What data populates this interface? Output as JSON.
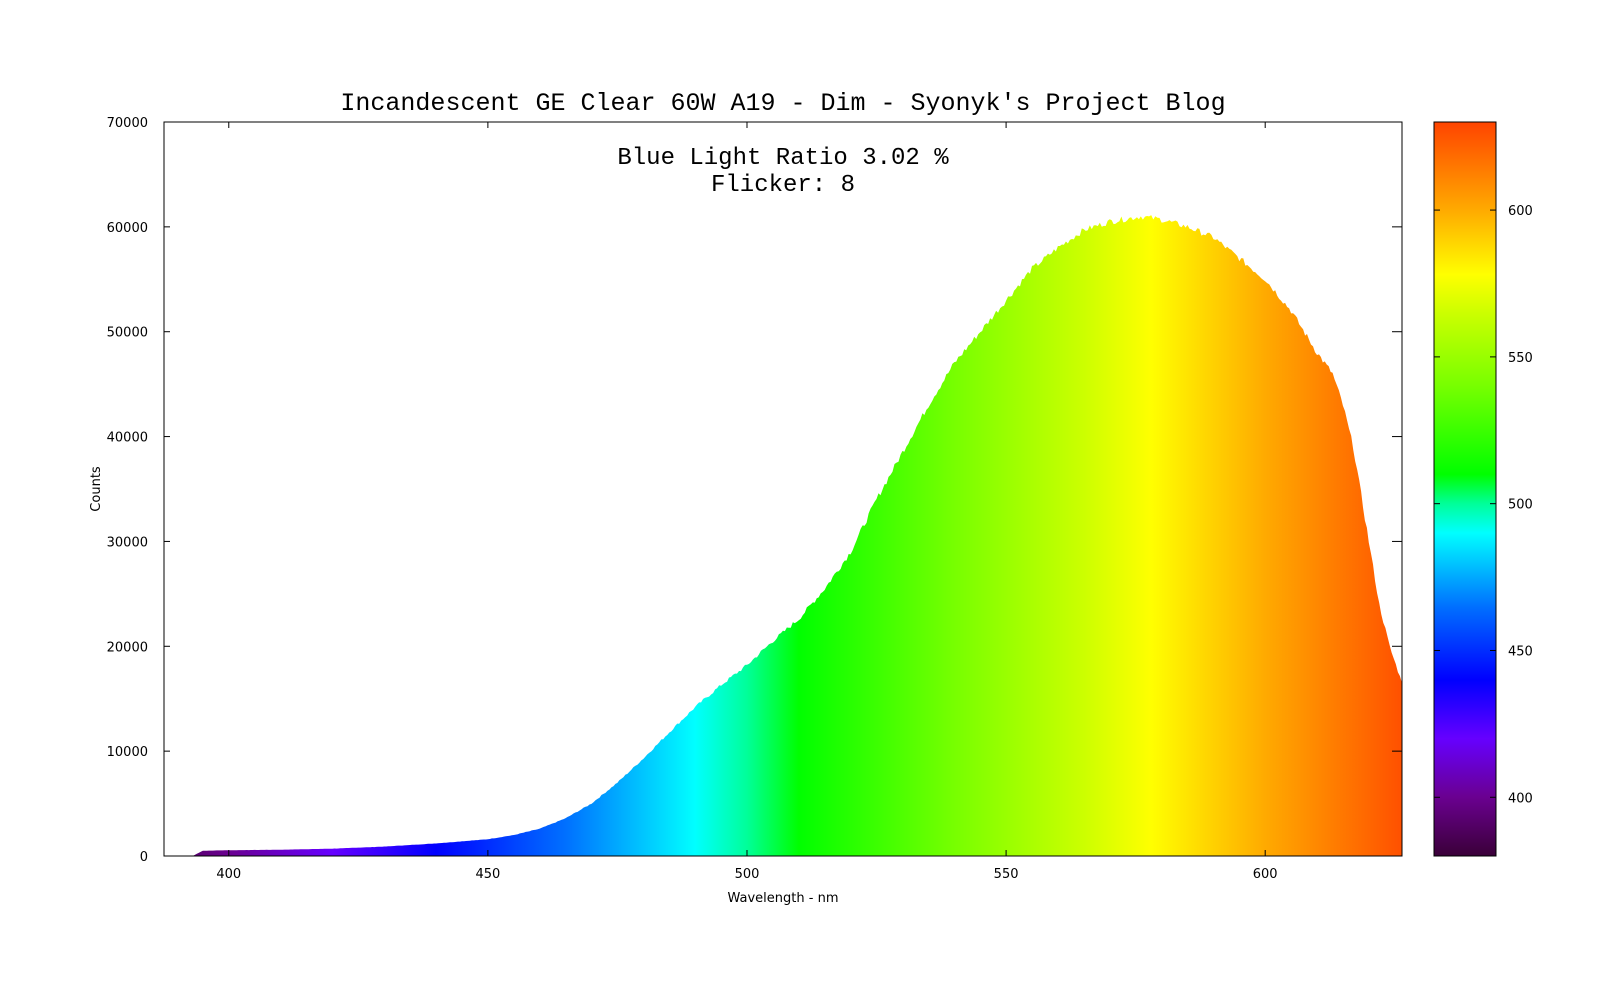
{
  "chart_data": {
    "type": "area",
    "title": "Incandescent GE Clear 60W A19 - Dim - Syonyk's Project Blog",
    "annotations": [
      "Blue Light Ratio 3.02 %",
      "Flicker: 8"
    ],
    "xlabel": "Wavelength - nm",
    "ylabel": "Counts",
    "xlim": [
      387.5,
      626.4
    ],
    "ylim": [
      0,
      70000
    ],
    "xticks": [
      400,
      450,
      500,
      550,
      600
    ],
    "yticks": [
      0,
      10000,
      20000,
      30000,
      40000,
      50000,
      60000,
      70000
    ],
    "grid": false,
    "colorbar": {
      "range": [
        380,
        630
      ],
      "ticks": [
        400,
        450,
        500,
        550,
        600
      ],
      "stops": [
        {
          "nm": 380,
          "color": "#3a0038"
        },
        {
          "nm": 400,
          "color": "#6a0090"
        },
        {
          "nm": 420,
          "color": "#6600ff"
        },
        {
          "nm": 440,
          "color": "#0000ff"
        },
        {
          "nm": 465,
          "color": "#0070ff"
        },
        {
          "nm": 490,
          "color": "#00ffff"
        },
        {
          "nm": 500,
          "color": "#00ff99"
        },
        {
          "nm": 510,
          "color": "#00ff00"
        },
        {
          "nm": 540,
          "color": "#77ff00"
        },
        {
          "nm": 565,
          "color": "#ccff00"
        },
        {
          "nm": 578,
          "color": "#ffff00"
        },
        {
          "nm": 600,
          "color": "#ffaa00"
        },
        {
          "nm": 630,
          "color": "#ff4400"
        }
      ]
    },
    "series": [
      {
        "name": "spectrum",
        "x": [
          393,
          395,
          400,
          410,
          420,
          430,
          440,
          450,
          455,
          460,
          465,
          470,
          475,
          480,
          485,
          490,
          495,
          500,
          505,
          510,
          515,
          520,
          525,
          530,
          535,
          540,
          545,
          550,
          555,
          560,
          565,
          570,
          576,
          580,
          585,
          590,
          595,
          600,
          605,
          610,
          613,
          615,
          617,
          620,
          622,
          624,
          626.4
        ],
        "y": [
          0,
          500,
          550,
          600,
          700,
          900,
          1200,
          1600,
          2000,
          2600,
          3600,
          5000,
          7000,
          9300,
          11800,
          14200,
          16300,
          18200,
          20500,
          22600,
          25500,
          29000,
          34000,
          38500,
          43000,
          47000,
          50000,
          53000,
          56000,
          58000,
          59700,
          60500,
          61000,
          60700,
          60000,
          59000,
          57000,
          55000,
          52000,
          48000,
          46000,
          43000,
          39000,
          30000,
          24000,
          20000,
          16500
        ]
      }
    ]
  }
}
